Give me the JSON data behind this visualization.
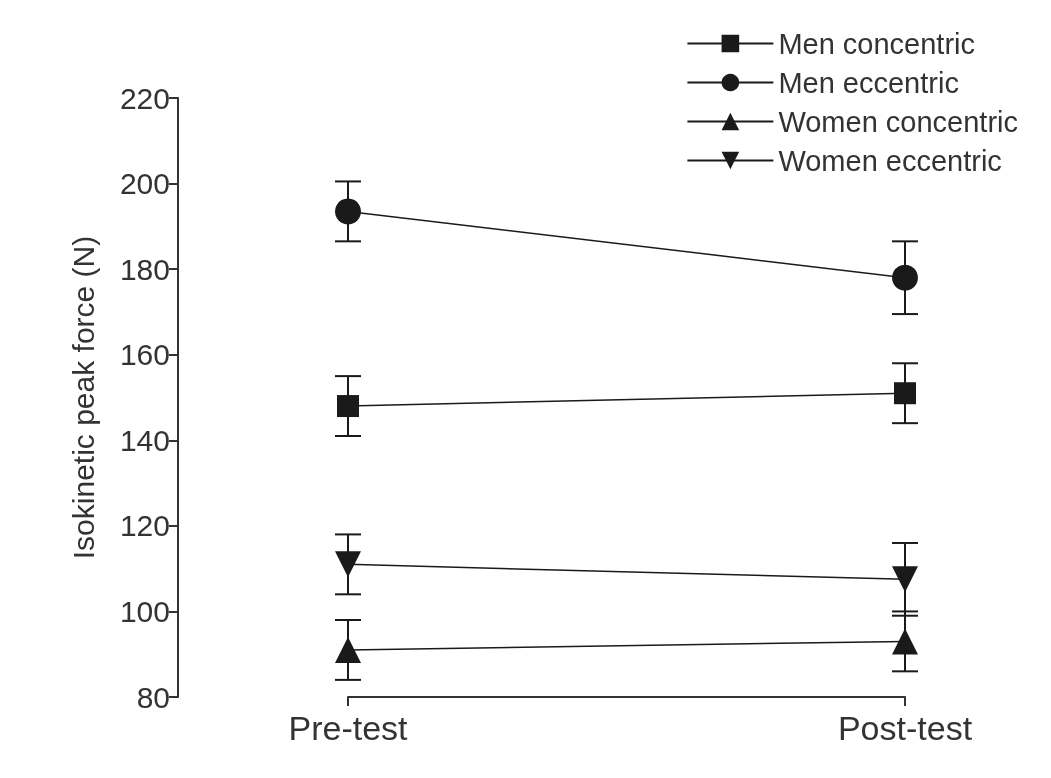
{
  "chart_data": {
    "type": "line",
    "ylabel": "Isokinetic peak force (N)",
    "categories": [
      "Pre-test",
      "Post-test"
    ],
    "series": [
      {
        "name": "Men concentric",
        "color": "#1a1a1a",
        "marker": "square",
        "values": [
          148,
          151
        ],
        "errors": [
          7,
          7
        ]
      },
      {
        "name": "Men eccentric",
        "color": "#1a1a1a",
        "marker": "circle",
        "values": [
          193.5,
          178
        ],
        "errors": [
          7,
          8.5
        ]
      },
      {
        "name": "Women concentric",
        "color": "#1a1a1a",
        "marker": "triangle",
        "values": [
          91,
          93
        ],
        "errors": [
          7,
          7
        ]
      },
      {
        "name": "Women eccentric",
        "color": "#1a1a1a",
        "marker": "triangle-down",
        "values": [
          111,
          107.5
        ],
        "errors": [
          7,
          8.5
        ]
      }
    ],
    "ylim": [
      80,
      220
    ],
    "yticks": [
      80,
      100,
      120,
      140,
      160,
      180,
      200,
      220
    ],
    "grid": false,
    "legend": "top right",
    "line_style": "solid"
  }
}
